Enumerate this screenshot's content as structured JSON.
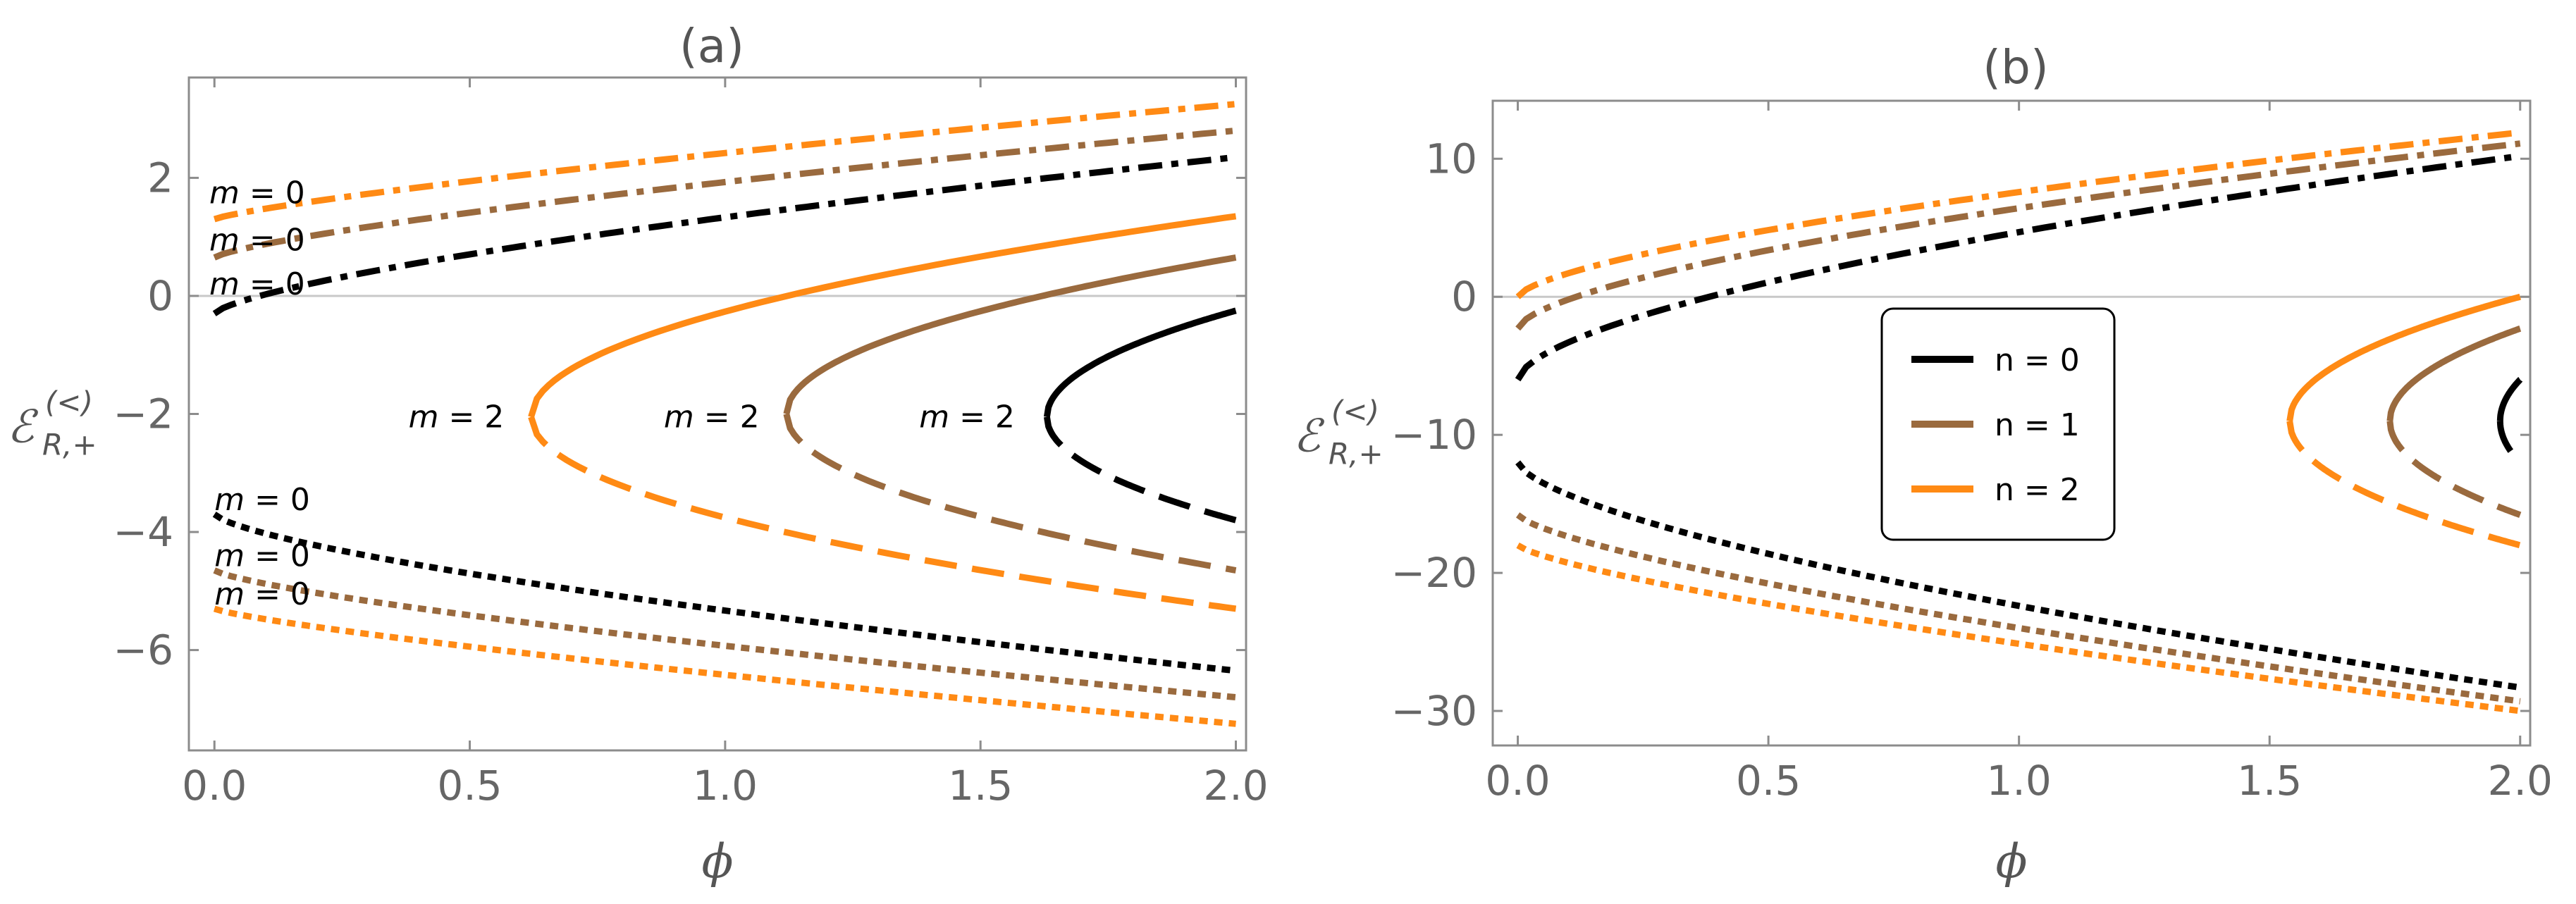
{
  "colors": {
    "n0": "#000000",
    "n1": "#9a6a3e",
    "n2": "#ff8a14"
  },
  "ylabel_main": "ℰ",
  "ylabel_super": "(<)",
  "ylabel_sub": "R,+",
  "chart_data": [
    {
      "type": "line",
      "title": "(a)",
      "xlabel": "ϕ",
      "ylabel": "ℰ(<) R,+",
      "xlim": [
        -0.05,
        2.02
      ],
      "ylim": [
        -7.7,
        3.7
      ],
      "xticks": [
        0,
        0.5,
        1,
        1.5,
        2
      ],
      "xtick_labels": [
        "0.0",
        "0.5",
        "1.0",
        "1.5",
        "2.0"
      ],
      "yticks": [
        -6,
        -4,
        -2,
        0,
        2
      ],
      "ytick_labels": [
        "−6",
        "−4",
        "−2",
        "0",
        "2"
      ],
      "zero_line": true,
      "series": [
        {
          "name": "n = 0, m = 0 upper",
          "n": 0,
          "style": "dashdot",
          "kind": "pow",
          "y0": -0.3,
          "y1": 2.35,
          "p": 0.7
        },
        {
          "name": "n = 1, m = 0 upper",
          "n": 1,
          "style": "dashdot",
          "kind": "pow",
          "y0": 0.65,
          "y1": 2.8,
          "p": 0.75
        },
        {
          "name": "n = 2, m = 0 upper",
          "n": 2,
          "style": "dashdot",
          "kind": "pow",
          "y0": 1.3,
          "y1": 3.25,
          "p": 0.8
        },
        {
          "name": "n = 0, m = 0 lower",
          "n": 0,
          "style": "dotted",
          "kind": "pow",
          "y0": -3.7,
          "y1": -6.35,
          "p": 0.7
        },
        {
          "name": "n = 1, m = 0 lower",
          "n": 1,
          "style": "dotted",
          "kind": "pow",
          "y0": -4.65,
          "y1": -6.8,
          "p": 0.75
        },
        {
          "name": "n = 2, m = 0 lower",
          "n": 2,
          "style": "dotted",
          "kind": "pow",
          "y0": -5.3,
          "y1": -7.25,
          "p": 0.8
        },
        {
          "name": "n = 0, m = 2 upper",
          "n": 0,
          "style": "solid",
          "kind": "branch",
          "x0": 1.63,
          "yc": -2.05,
          "y_end": -0.25
        },
        {
          "name": "n = 0, m = 2 lower",
          "n": 0,
          "style": "dashed",
          "kind": "branch",
          "x0": 1.63,
          "yc": -2.05,
          "y_end": -3.8
        },
        {
          "name": "n = 1, m = 2 upper",
          "n": 1,
          "style": "solid",
          "kind": "branch",
          "x0": 1.12,
          "yc": -2.0,
          "y_end": 0.65
        },
        {
          "name": "n = 1, m = 2 lower",
          "n": 1,
          "style": "dashed",
          "kind": "branch",
          "x0": 1.12,
          "yc": -2.0,
          "y_end": -4.65
        },
        {
          "name": "n = 2, m = 2 upper",
          "n": 2,
          "style": "solid",
          "kind": "branch",
          "x0": 0.62,
          "yc": -2.05,
          "y_end": 1.35
        },
        {
          "name": "n = 2, m = 2 lower",
          "n": 2,
          "style": "dashed",
          "kind": "branch",
          "x0": 0.62,
          "yc": -2.05,
          "y_end": -5.3
        }
      ],
      "annotations": [
        {
          "text_m": "m",
          "text_rest": " = 0",
          "x": -0.01,
          "y": 1.75
        },
        {
          "text_m": "m",
          "text_rest": " = 0",
          "x": -0.01,
          "y": 0.95
        },
        {
          "text_m": "m",
          "text_rest": " = 0",
          "x": -0.01,
          "y": 0.2
        },
        {
          "text_m": "m",
          "text_rest": " = 0",
          "x": 0.0,
          "y": -3.45
        },
        {
          "text_m": "m",
          "text_rest": " = 0",
          "x": 0.0,
          "y": -4.4
        },
        {
          "text_m": "m",
          "text_rest": " = 0",
          "x": 0.0,
          "y": -5.05
        },
        {
          "text_m": "m",
          "text_rest": " = 2",
          "x": 0.38,
          "y": -2.05
        },
        {
          "text_m": "m",
          "text_rest": " = 2",
          "x": 0.88,
          "y": -2.05
        },
        {
          "text_m": "m",
          "text_rest": " = 2",
          "x": 1.38,
          "y": -2.05
        }
      ]
    },
    {
      "type": "line",
      "title": "(b)",
      "xlabel": "ϕ",
      "ylabel": "ℰ(<) R,+",
      "xlim": [
        -0.05,
        2.02
      ],
      "ylim": [
        -32.5,
        14.2
      ],
      "xticks": [
        0,
        0.5,
        1,
        1.5,
        2
      ],
      "xtick_labels": [
        "0.0",
        "0.5",
        "1.0",
        "1.5",
        "2.0"
      ],
      "yticks": [
        -30,
        -20,
        -10,
        0,
        10
      ],
      "ytick_labels": [
        "−30",
        "−20",
        "−10",
        "0",
        "10"
      ],
      "zero_line": true,
      "series": [
        {
          "name": "n = 0 upper",
          "n": 0,
          "style": "dashdot",
          "kind": "pow",
          "y0": -6.0,
          "y1": 10.2,
          "p": 0.6
        },
        {
          "name": "n = 1 upper",
          "n": 1,
          "style": "dashdot",
          "kind": "pow",
          "y0": -2.3,
          "y1": 11.1,
          "p": 0.62
        },
        {
          "name": "n = 2 upper",
          "n": 2,
          "style": "dashdot",
          "kind": "pow",
          "y0": 0.0,
          "y1": 11.9,
          "p": 0.65
        },
        {
          "name": "n = 0 lower",
          "n": 0,
          "style": "dotted",
          "kind": "pow",
          "y0": -12.0,
          "y1": -28.3,
          "p": 0.65
        },
        {
          "name": "n = 1 lower",
          "n": 1,
          "style": "dotted",
          "kind": "pow",
          "y0": -15.8,
          "y1": -29.3,
          "p": 0.72
        },
        {
          "name": "n = 2 lower",
          "n": 2,
          "style": "dotted",
          "kind": "pow",
          "y0": -18.0,
          "y1": -30.0,
          "p": 0.75
        },
        {
          "name": "n = 0 upper branch",
          "n": 0,
          "style": "solid",
          "kind": "branch",
          "x0": 1.96,
          "yc": -9.0,
          "y_end": -6.0
        },
        {
          "name": "n = 0 lower branch",
          "n": 0,
          "style": "dashed",
          "kind": "branch",
          "x0": 1.96,
          "yc": -9.0,
          "y_end": -12.0
        },
        {
          "name": "n = 1 upper branch",
          "n": 1,
          "style": "solid",
          "kind": "branch",
          "x0": 1.74,
          "yc": -9.0,
          "y_end": -2.3
        },
        {
          "name": "n = 1 lower branch",
          "n": 1,
          "style": "dashed",
          "kind": "branch",
          "x0": 1.74,
          "yc": -9.0,
          "y_end": -15.8
        },
        {
          "name": "n = 2 upper branch",
          "n": 2,
          "style": "solid",
          "kind": "branch",
          "x0": 1.54,
          "yc": -9.0,
          "y_end": 0.0
        },
        {
          "name": "n = 2 lower branch",
          "n": 2,
          "style": "dashed",
          "kind": "branch",
          "x0": 1.54,
          "yc": -9.0,
          "y_end": -18.0
        }
      ],
      "legend": {
        "placement": "center",
        "entries": [
          {
            "label": "n = 0",
            "n": 0
          },
          {
            "label": "n = 1",
            "n": 1
          },
          {
            "label": "n = 2",
            "n": 2
          }
        ]
      }
    }
  ]
}
